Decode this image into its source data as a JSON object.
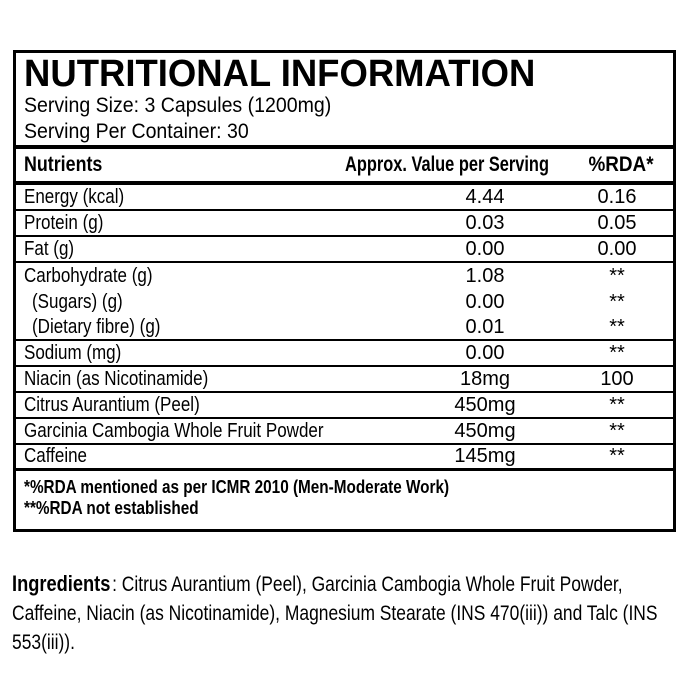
{
  "label": {
    "title": "NUTRITIONAL INFORMATION",
    "serving_size": "Serving Size: 3 Capsules (1200mg)",
    "serving_per_container": "Serving Per Container: 30",
    "table": {
      "headers": {
        "nutrient": "Nutrients",
        "value": "Approx. Value per Serving",
        "rda": "%RDA*"
      },
      "rows": [
        {
          "nutrient": "Energy (kcal)",
          "value": "4.44",
          "rda": "0.16"
        },
        {
          "nutrient": "Protein (g)",
          "value": "0.03",
          "rda": "0.05"
        },
        {
          "nutrient": "Fat (g)",
          "value": "0.00",
          "rda": "0.00"
        },
        {
          "nutrient": "Carbohydrate (g)",
          "value": "1.08",
          "rda": "**"
        },
        {
          "nutrient": "(Sugars) (g)",
          "value": "0.00",
          "rda": "**"
        },
        {
          "nutrient": "(Dietary fibre) (g)",
          "value": "0.01",
          "rda": "**"
        },
        {
          "nutrient": "Sodium (mg)",
          "value": "0.00",
          "rda": "**"
        },
        {
          "nutrient": "Niacin (as Nicotinamide)",
          "value": "18mg",
          "rda": "100"
        },
        {
          "nutrient": "Citrus Aurantium (Peel)",
          "value": "450mg",
          "rda": "**"
        },
        {
          "nutrient": "Garcinia Cambogia Whole Fruit Powder",
          "value": "450mg",
          "rda": "**"
        },
        {
          "nutrient": "Caffeine",
          "value": "145mg",
          "rda": "**"
        }
      ]
    },
    "footnotes": [
      "*%RDA mentioned as per ICMR 2010 (Men-Moderate Work)",
      "**%RDA not established"
    ],
    "ingredients": {
      "label": "Ingredients",
      "separator": ": ",
      "text": "Citrus Aurantium (Peel), Garcinia Cambogia Whole Fruit Powder, Caffeine, Niacin (as Nicotinamide), Magnesium Stearate (INS 470(iii)) and Talc (INS 553(iii))."
    },
    "colors": {
      "border": "#000000",
      "background": "#ffffff",
      "text": "#000000"
    }
  }
}
